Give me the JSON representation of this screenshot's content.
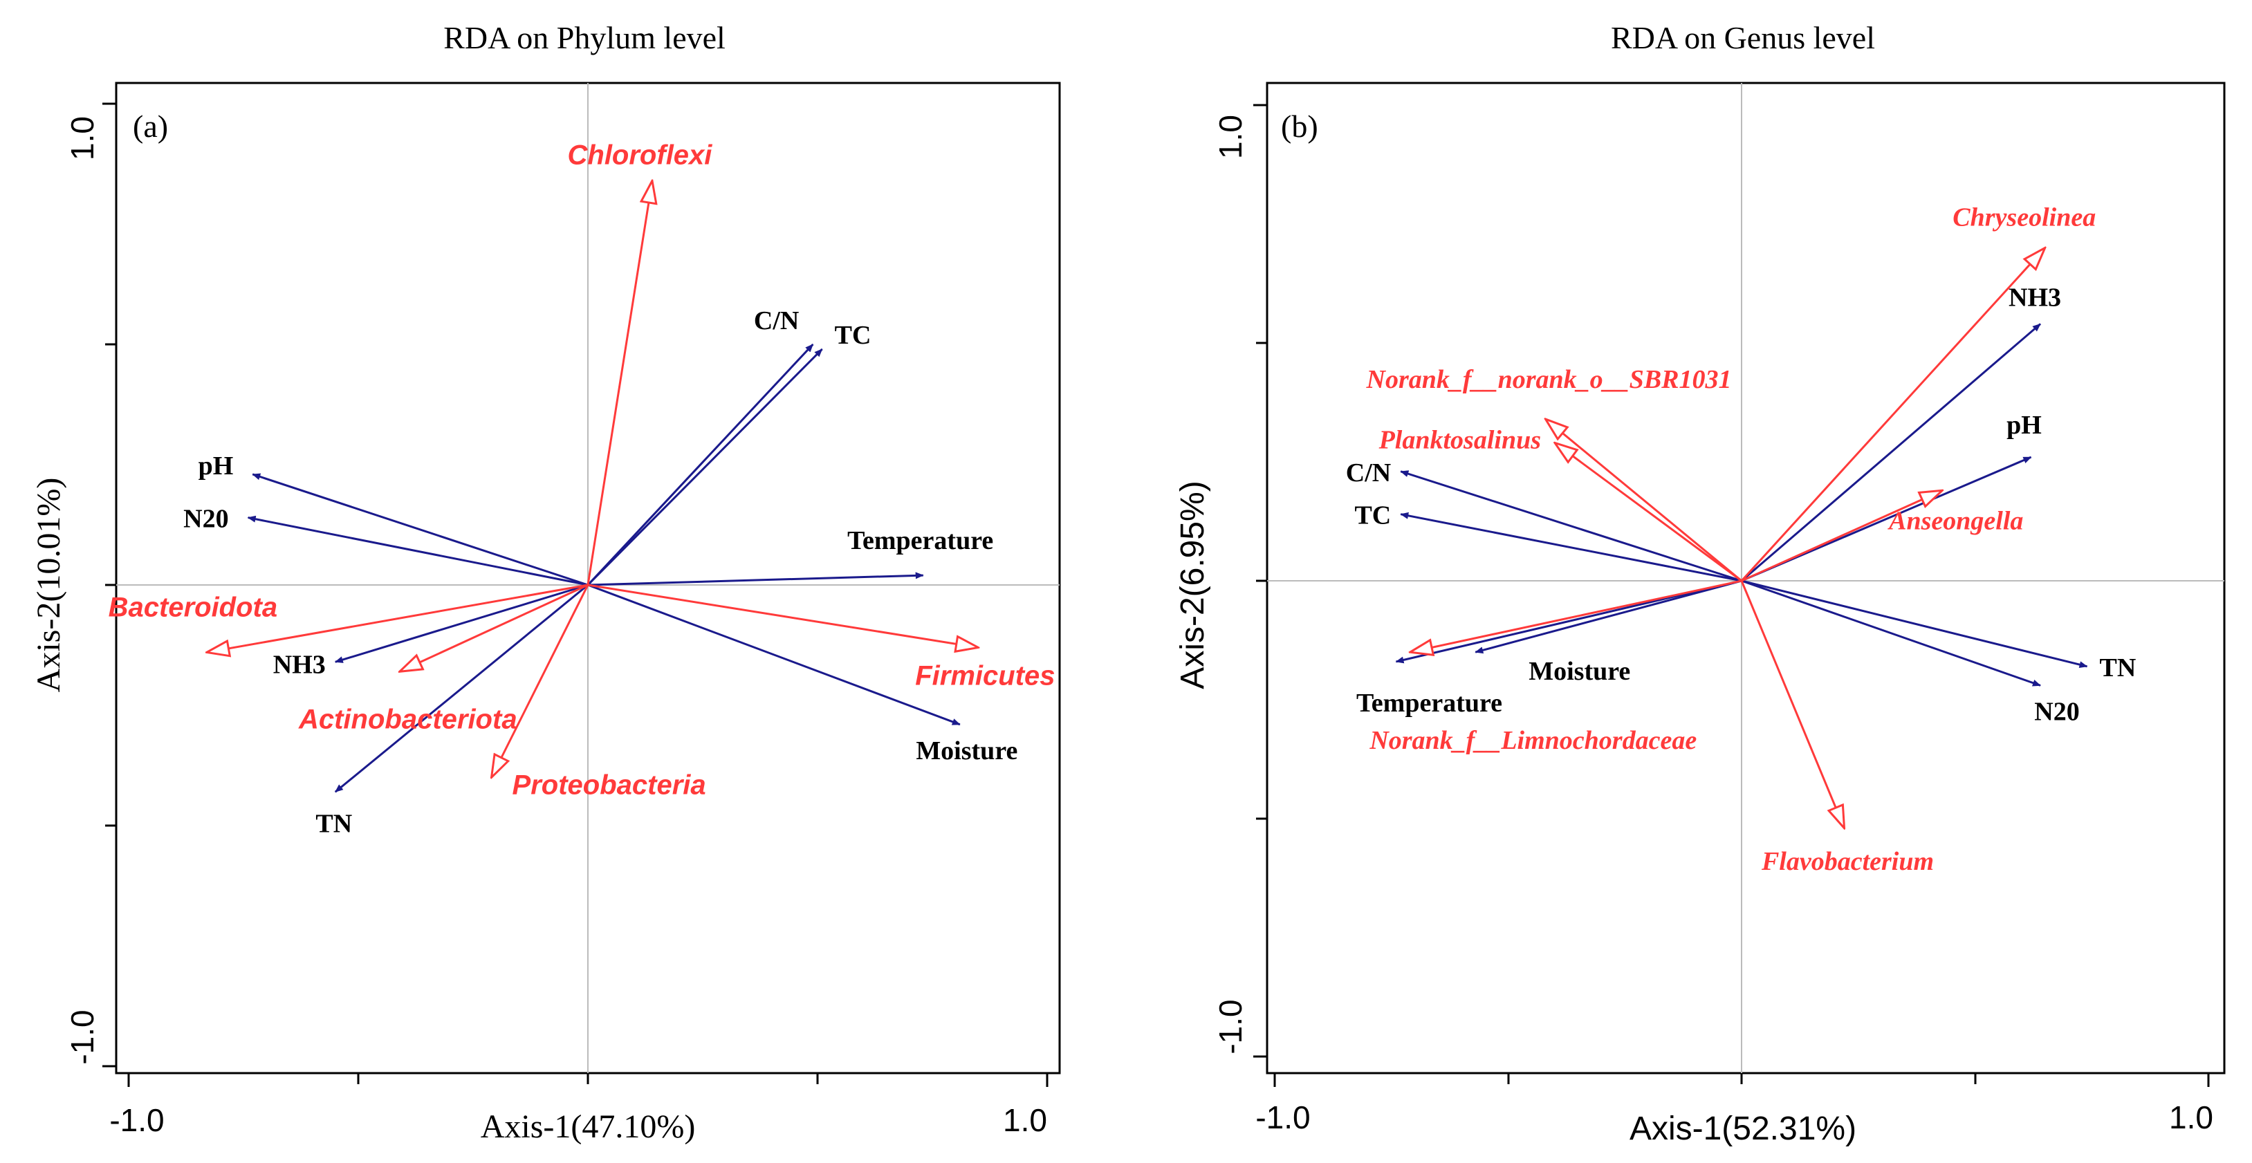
{
  "chart_data": [
    {
      "type": "scatter",
      "subtype": "rda-biplot",
      "title": "RDA on Phylum level",
      "panel_label": "(a)",
      "xlabel": "Axis-1(47.10%)",
      "ylabel": "Axis-2(10.01%)",
      "xlim": [
        -1.0,
        1.0
      ],
      "ylim": [
        -1.0,
        1.0
      ],
      "xticks": [
        -1.0,
        1.0
      ],
      "yticks": [
        -1.0,
        1.0
      ],
      "tick_labels": {
        "xmin": "-1.0",
        "xmax": "1.0",
        "ymin": "-1.0",
        "ymax": "1.0"
      },
      "env_color": "#1a1a8c",
      "taxa_color": "#ff3a3a",
      "env_vectors": [
        {
          "name": "C/N",
          "x": 0.49,
          "y": 0.5
        },
        {
          "name": "TC",
          "x": 0.51,
          "y": 0.49
        },
        {
          "name": "pH",
          "x": -0.73,
          "y": 0.23
        },
        {
          "name": "N20",
          "x": -0.74,
          "y": 0.14
        },
        {
          "name": "Temperature",
          "x": 0.73,
          "y": 0.02
        },
        {
          "name": "NH3",
          "x": -0.55,
          "y": -0.16
        },
        {
          "name": "TN",
          "x": -0.55,
          "y": -0.43
        },
        {
          "name": "Moisture",
          "x": 0.81,
          "y": -0.29
        }
      ],
      "taxa_vectors": [
        {
          "name": "Chloroflexi",
          "x": 0.14,
          "y": 0.84
        },
        {
          "name": "Bacteroidota",
          "x": -0.83,
          "y": -0.14
        },
        {
          "name": "Actinobacteriota",
          "x": -0.41,
          "y": -0.18
        },
        {
          "name": "Proteobacteria",
          "x": -0.21,
          "y": -0.4
        },
        {
          "name": "Firmicutes",
          "x": 0.85,
          "y": -0.13
        }
      ]
    },
    {
      "type": "scatter",
      "subtype": "rda-biplot",
      "title": "RDA on Genus level",
      "panel_label": "(b)",
      "xlabel": "Axis-1(52.31%)",
      "ylabel": "Axis-2(6.95%)",
      "xlim": [
        -1.0,
        1.0
      ],
      "ylim": [
        -1.0,
        1.0
      ],
      "xticks": [
        -1.0,
        1.0
      ],
      "yticks": [
        -1.0,
        1.0
      ],
      "tick_labels": {
        "xmin": "-1.0",
        "xmax": "1.0",
        "ymin": "-1.0",
        "ymax": "1.0"
      },
      "env_color": "#1a1a8c",
      "taxa_color": "#ff3a3a",
      "env_vectors": [
        {
          "name": "NH3",
          "x": 0.64,
          "y": 0.54
        },
        {
          "name": "pH",
          "x": 0.62,
          "y": 0.26
        },
        {
          "name": "C/N",
          "x": -0.73,
          "y": 0.23
        },
        {
          "name": "TC",
          "x": -0.73,
          "y": 0.14
        },
        {
          "name": "Moisture",
          "x": -0.57,
          "y": -0.15
        },
        {
          "name": "Temperature",
          "x": -0.74,
          "y": -0.17
        },
        {
          "name": "TN",
          "x": 0.74,
          "y": -0.18
        },
        {
          "name": "N20",
          "x": 0.64,
          "y": -0.22
        }
      ],
      "taxa_vectors": [
        {
          "name": "Chryseolinea",
          "x": 0.65,
          "y": 0.7
        },
        {
          "name": "Norank_f__norank_o__SBR1031",
          "x": -0.42,
          "y": 0.34
        },
        {
          "name": "Planktosalinus",
          "x": -0.4,
          "y": 0.29
        },
        {
          "name": "Anseongella",
          "x": 0.43,
          "y": 0.19
        },
        {
          "name": "Norank_f__Limnochordaceae",
          "x": -0.71,
          "y": -0.15
        },
        {
          "name": "Flavobacterium",
          "x": 0.22,
          "y": -0.52
        }
      ]
    }
  ]
}
